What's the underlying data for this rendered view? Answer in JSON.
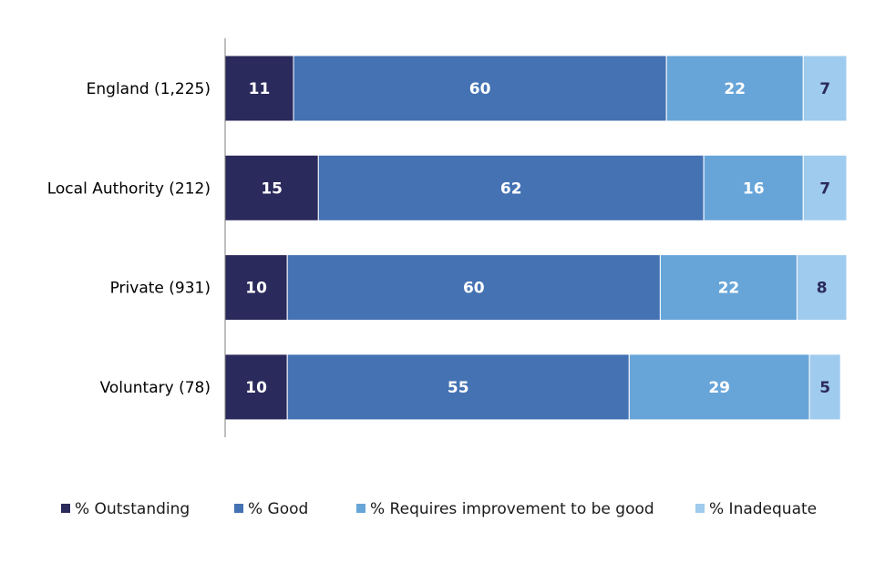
{
  "chart_data": {
    "type": "bar",
    "orientation": "horizontal",
    "stacked": true,
    "categories": [
      "England (1,225)",
      "Local Authority (212)",
      "Private (931)",
      "Voluntary (78)"
    ],
    "series": [
      {
        "name": "% Outstanding",
        "values": [
          11,
          15,
          10,
          10
        ],
        "color": "#2b2a5c",
        "label_color": "#ffffff"
      },
      {
        "name": "% Good",
        "values": [
          60,
          62,
          60,
          55
        ],
        "color": "#4472b3",
        "label_color": "#ffffff"
      },
      {
        "name": "% Requires improvement to be good",
        "values": [
          22,
          16,
          22,
          29
        ],
        "color": "#67a5d9",
        "label_color": "#ffffff"
      },
      {
        "name": "% Inadequate",
        "values": [
          7,
          7,
          8,
          5
        ],
        "color": "#9fcbee",
        "label_color": "#2b2a5c"
      }
    ],
    "xlim": [
      0,
      100
    ],
    "grid": false,
    "legend_position": "bottom",
    "title": "",
    "xlabel": "",
    "ylabel": ""
  }
}
